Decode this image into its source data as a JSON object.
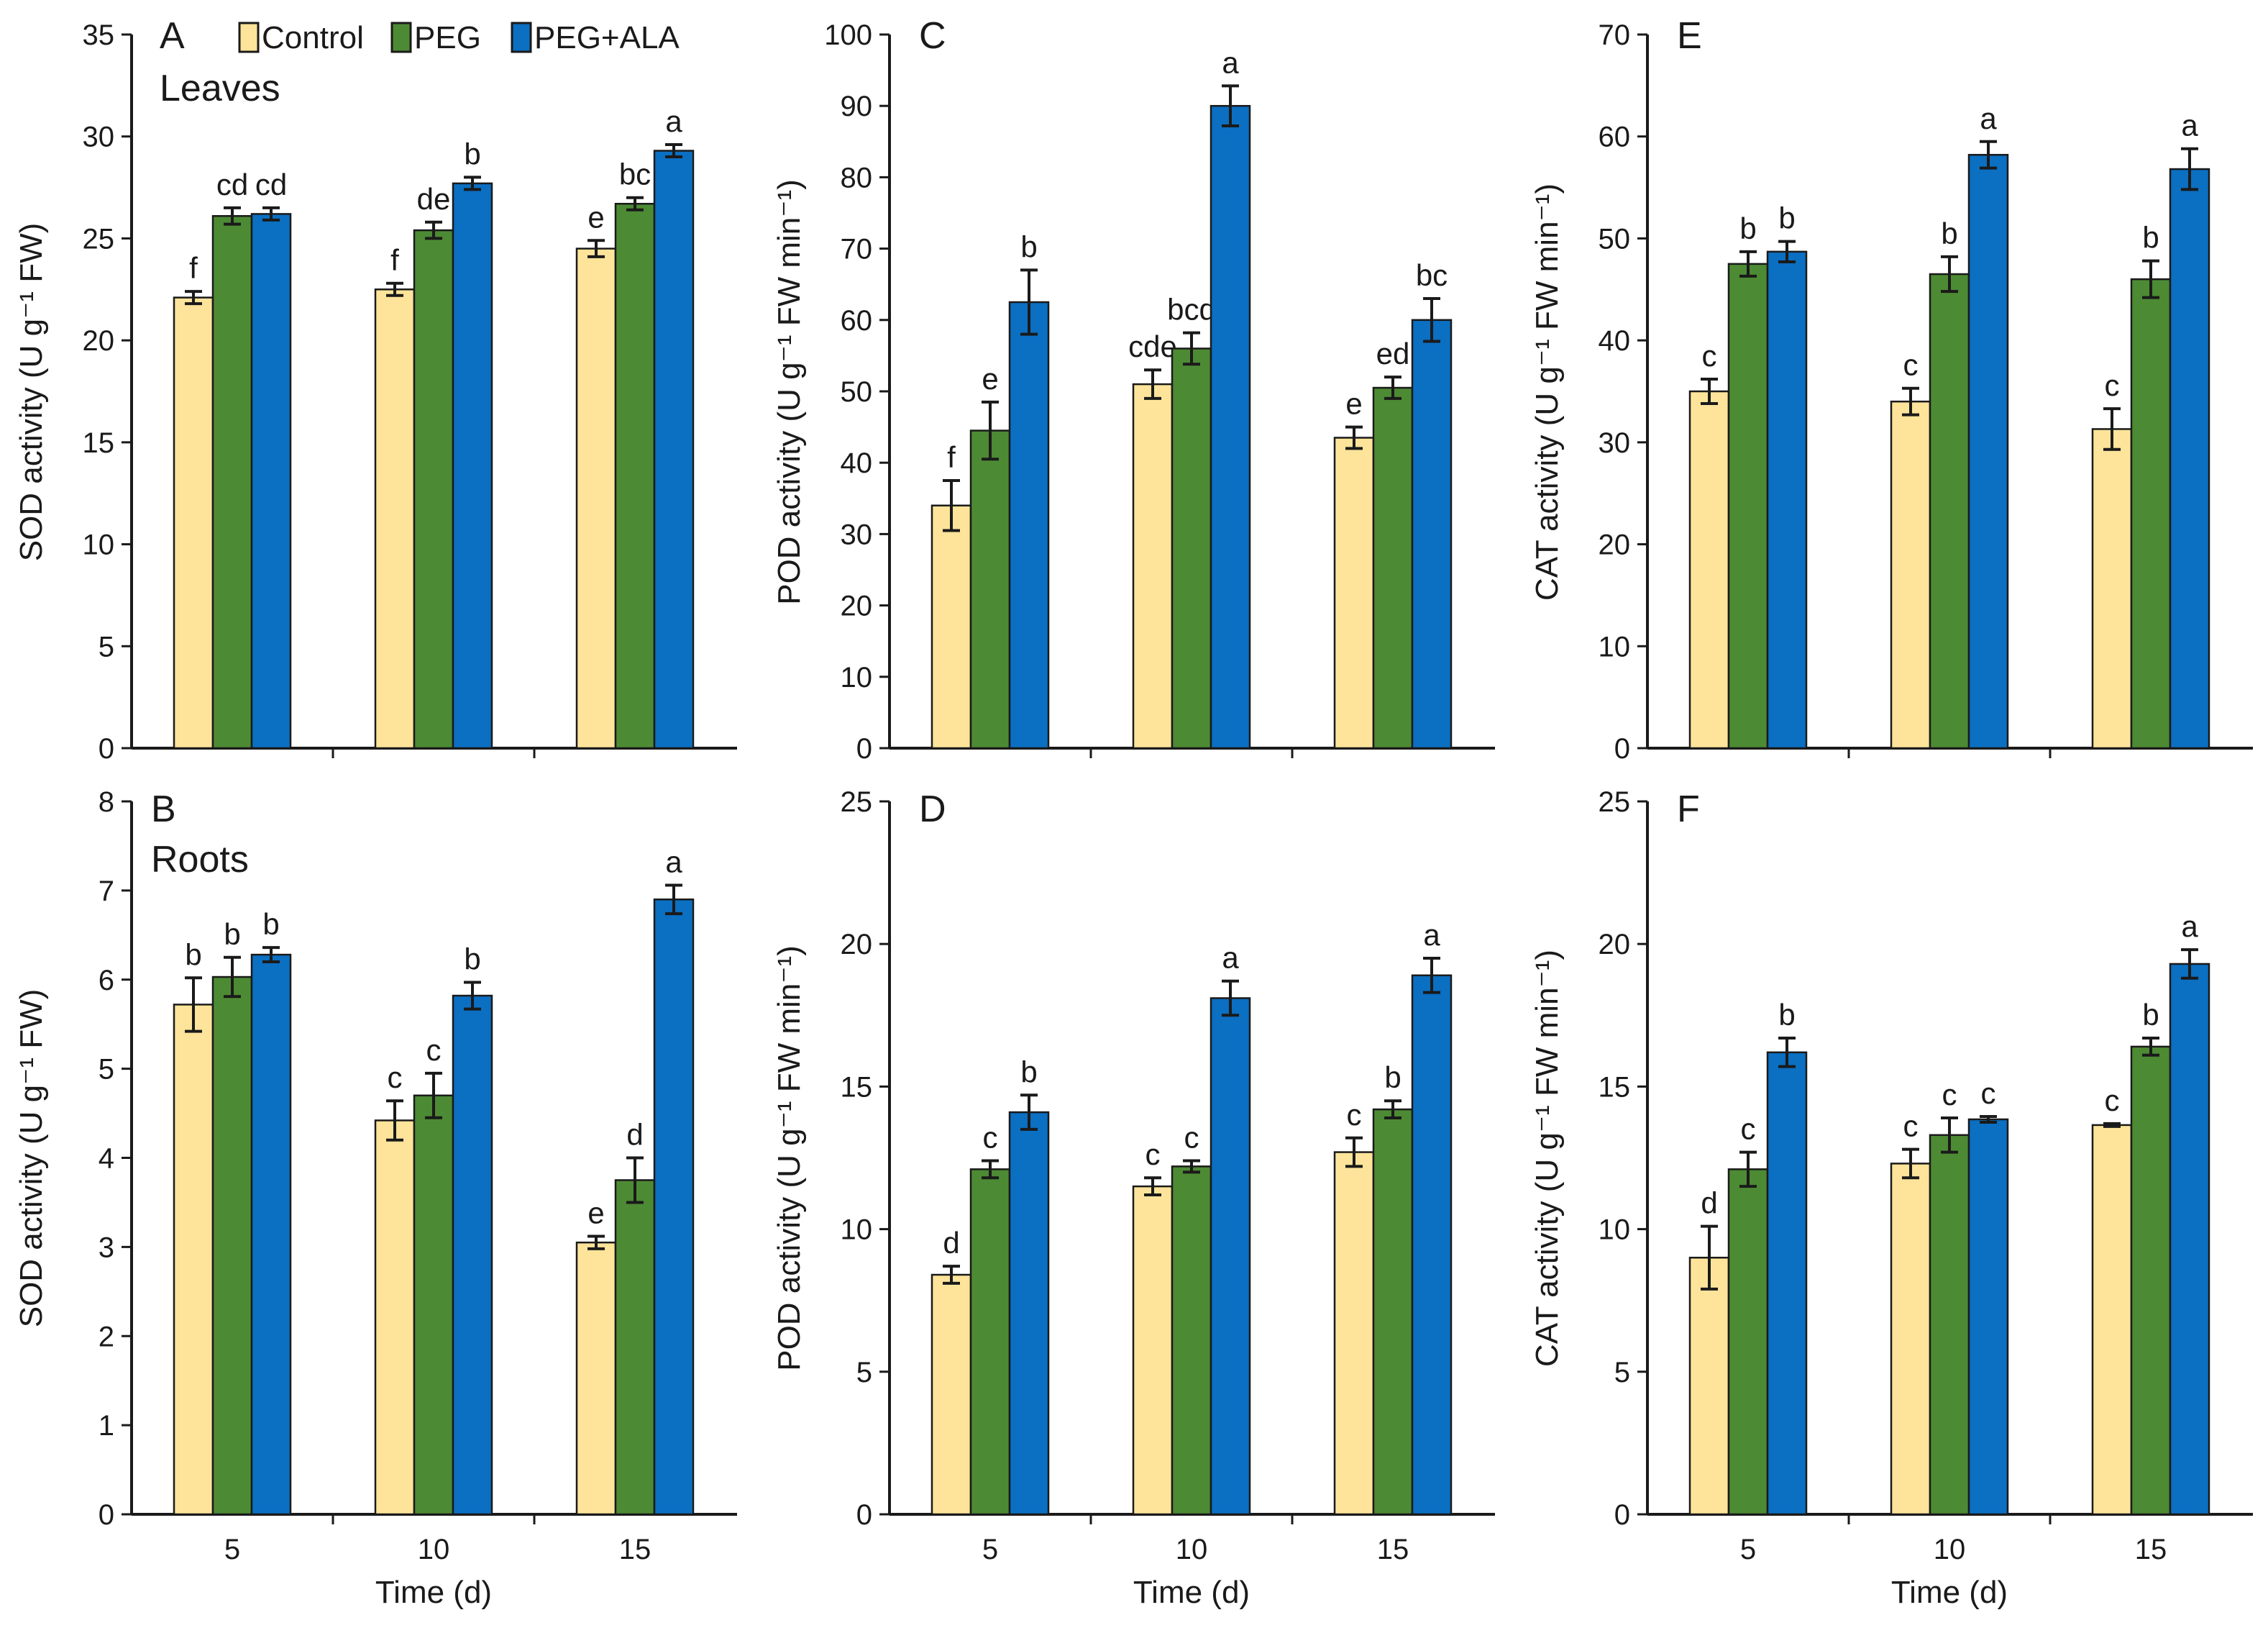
{
  "figure": {
    "legend": [
      {
        "name": "Control",
        "color": "#fde49a"
      },
      {
        "name": "PEG",
        "color": "#4d8a34"
      },
      {
        "name": "PEG+ALA",
        "color": "#0b6fc2"
      }
    ],
    "xlabel": "Time (d)"
  },
  "chart_data": [
    {
      "panel": "A",
      "tissue": "Leaves",
      "type": "bar",
      "ylabel": "SOD activity (U g⁻¹ FW)",
      "categories": [
        "5",
        "10",
        "15"
      ],
      "ylim": [
        0,
        35
      ],
      "ytick_step": 5,
      "series": [
        {
          "name": "Control",
          "values": [
            22.1,
            22.5,
            24.5
          ],
          "errors": [
            0.3,
            0.3,
            0.4
          ],
          "letters": [
            "f",
            "f",
            "e"
          ]
        },
        {
          "name": "PEG",
          "values": [
            26.1,
            25.4,
            26.7
          ],
          "errors": [
            0.4,
            0.4,
            0.3
          ],
          "letters": [
            "cd",
            "de",
            "bc"
          ]
        },
        {
          "name": "PEG+ALA",
          "values": [
            26.2,
            27.7,
            29.3
          ],
          "errors": [
            0.3,
            0.3,
            0.3
          ],
          "letters": [
            "cd",
            "b",
            "a"
          ]
        }
      ]
    },
    {
      "panel": "C",
      "tissue": "",
      "type": "bar",
      "ylabel": "POD activity (U g⁻¹ FW min⁻¹)",
      "categories": [
        "5",
        "10",
        "15"
      ],
      "ylim": [
        0,
        100
      ],
      "ytick_step": 10,
      "series": [
        {
          "name": "Control",
          "values": [
            34.0,
            51.0,
            43.5
          ],
          "errors": [
            3.5,
            2.0,
            1.5
          ],
          "letters": [
            "f",
            "cde",
            "e"
          ]
        },
        {
          "name": "PEG",
          "values": [
            44.5,
            56.0,
            50.5
          ],
          "errors": [
            4.0,
            2.2,
            1.5
          ],
          "letters": [
            "e",
            "bcd",
            "ed"
          ]
        },
        {
          "name": "PEG+ALA",
          "values": [
            62.5,
            90.0,
            60.0
          ],
          "errors": [
            4.5,
            2.8,
            3.0
          ],
          "letters": [
            "b",
            "a",
            "bc"
          ]
        }
      ]
    },
    {
      "panel": "E",
      "tissue": "",
      "type": "bar",
      "ylabel": "CAT activity (U g⁻¹ FW min⁻¹)",
      "categories": [
        "5",
        "10",
        "15"
      ],
      "ylim": [
        0,
        70
      ],
      "ytick_step": 10,
      "series": [
        {
          "name": "Control",
          "values": [
            35.0,
            34.0,
            31.3
          ],
          "errors": [
            1.2,
            1.3,
            2.0
          ],
          "letters": [
            "c",
            "c",
            "c"
          ]
        },
        {
          "name": "PEG",
          "values": [
            47.5,
            46.5,
            46.0
          ],
          "errors": [
            1.2,
            1.7,
            1.8
          ],
          "letters": [
            "b",
            "b",
            "b"
          ]
        },
        {
          "name": "PEG+ALA",
          "values": [
            48.7,
            58.2,
            56.8
          ],
          "errors": [
            1.0,
            1.3,
            2.0
          ],
          "letters": [
            "b",
            "a",
            "a"
          ]
        }
      ]
    },
    {
      "panel": "B",
      "tissue": "Roots",
      "type": "bar",
      "ylabel": "SOD activity (U g⁻¹ FW)",
      "categories": [
        "5",
        "10",
        "15"
      ],
      "ylim": [
        0,
        8
      ],
      "ytick_step": 1,
      "series": [
        {
          "name": "Control",
          "values": [
            5.72,
            4.42,
            3.05
          ],
          "errors": [
            0.3,
            0.22,
            0.07
          ],
          "letters": [
            "b",
            "c",
            "e"
          ]
        },
        {
          "name": "PEG",
          "values": [
            6.03,
            4.7,
            3.75
          ],
          "errors": [
            0.22,
            0.25,
            0.25
          ],
          "letters": [
            "b",
            "c",
            "d"
          ]
        },
        {
          "name": "PEG+ALA",
          "values": [
            6.28,
            5.82,
            6.9
          ],
          "errors": [
            0.08,
            0.15,
            0.16
          ],
          "letters": [
            "b",
            "b",
            "a"
          ]
        }
      ]
    },
    {
      "panel": "D",
      "tissue": "",
      "type": "bar",
      "ylabel": "POD activity (U g⁻¹ FW min⁻¹)",
      "categories": [
        "5",
        "10",
        "15"
      ],
      "ylim": [
        0,
        25
      ],
      "ytick_step": 5,
      "series": [
        {
          "name": "Control",
          "values": [
            8.4,
            11.5,
            12.7
          ],
          "errors": [
            0.3,
            0.3,
            0.5
          ],
          "letters": [
            "d",
            "c",
            "c"
          ]
        },
        {
          "name": "PEG",
          "values": [
            12.1,
            12.2,
            14.2
          ],
          "errors": [
            0.3,
            0.2,
            0.3
          ],
          "letters": [
            "c",
            "c",
            "b"
          ]
        },
        {
          "name": "PEG+ALA",
          "values": [
            14.1,
            18.1,
            18.9
          ],
          "errors": [
            0.6,
            0.6,
            0.6
          ],
          "letters": [
            "b",
            "a",
            "a"
          ]
        }
      ]
    },
    {
      "panel": "F",
      "tissue": "",
      "type": "bar",
      "ylabel": "CAT activity (U g⁻¹ FW min⁻¹)",
      "categories": [
        "5",
        "10",
        "15"
      ],
      "ylim": [
        0,
        25
      ],
      "ytick_step": 5,
      "series": [
        {
          "name": "Control",
          "values": [
            9.0,
            12.3,
            13.65
          ],
          "errors": [
            1.1,
            0.5,
            0.05
          ],
          "letters": [
            "d",
            "c",
            "c"
          ]
        },
        {
          "name": "PEG",
          "values": [
            12.1,
            13.3,
            16.4
          ],
          "errors": [
            0.6,
            0.6,
            0.3
          ],
          "letters": [
            "c",
            "c",
            "b"
          ]
        },
        {
          "name": "PEG+ALA",
          "values": [
            16.2,
            13.85,
            19.3
          ],
          "errors": [
            0.5,
            0.1,
            0.5
          ],
          "letters": [
            "b",
            "c",
            "a"
          ]
        }
      ]
    }
  ]
}
